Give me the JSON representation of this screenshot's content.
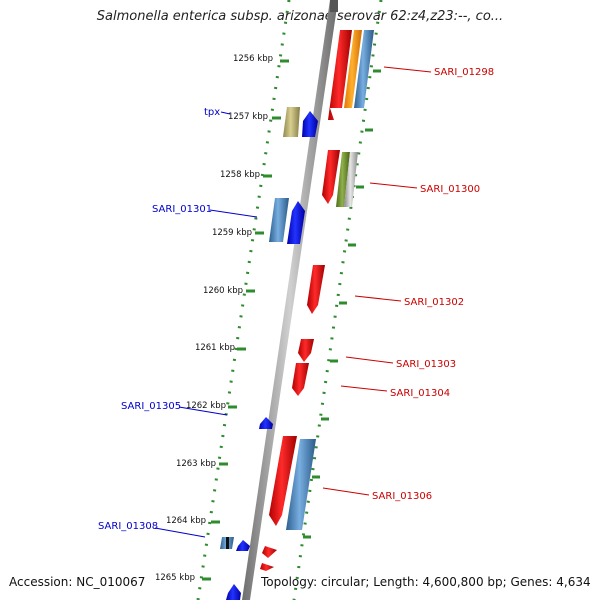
{
  "title": "Salmonella enterica subsp. arizonae serovar 62:z4,z23:--, co...",
  "accession": "Accession: NC_010067",
  "topology": "Topology: circular; Length: 4,600,800 bp; Genes: 4,634",
  "colors": {
    "backbone": "#8a8a8a",
    "ticks": "#2e8b2e",
    "forward_label": "#cc0000",
    "reverse_label": "#0000cc"
  },
  "kbp_ticks": [
    "1256 kbp",
    "1257 kbp",
    "1258 kbp",
    "1259 kbp",
    "1260 kbp",
    "1261 kbp",
    "1262 kbp",
    "1263 kbp",
    "1264 kbp",
    "1265 kbp"
  ],
  "forward_genes": [
    "SARI_01298",
    "SARI_01300",
    "SARI_01302",
    "SARI_01303",
    "SARI_01304",
    "SARI_01306"
  ],
  "reverse_genes": [
    "tpx",
    "SARI_01301",
    "SARI_01305",
    "SARI_01308"
  ]
}
